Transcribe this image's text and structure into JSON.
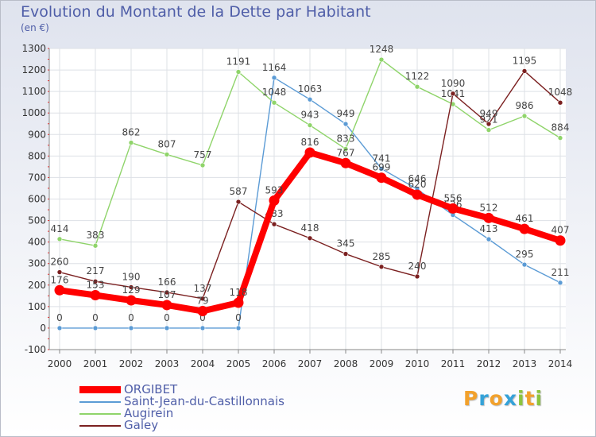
{
  "header": {
    "title": "Evolution du Montant de la Dette par Habitant",
    "unit": "(en €)"
  },
  "brand": {
    "letters": [
      {
        "char": "P",
        "color": "#f2a12c"
      },
      {
        "char": "r",
        "color": "#35a2d8"
      },
      {
        "char": "o",
        "color": "#f2a12c"
      },
      {
        "char": "x",
        "color": "#35a2d8"
      },
      {
        "char": "i",
        "color": "#8cc43f"
      },
      {
        "char": "t",
        "color": "#f2a12c"
      },
      {
        "char": "i",
        "color": "#8cc43f"
      }
    ]
  },
  "chart_data": {
    "type": "line",
    "title": "Evolution du Montant de la Dette par Habitant",
    "unit": "(en €)",
    "x": [
      "2000",
      "2001",
      "2002",
      "2003",
      "2004",
      "2005",
      "2006",
      "2007",
      "2008",
      "2009",
      "2010",
      "2011",
      "2012",
      "2013",
      "2014"
    ],
    "ylim": [
      -100,
      1300
    ],
    "yticks": [
      -100,
      0,
      100,
      200,
      300,
      400,
      500,
      600,
      700,
      800,
      900,
      1000,
      1100,
      1200,
      1300
    ],
    "grid": true,
    "legend_position": "bottom-left",
    "series": [
      {
        "name": "Saint-Jean-du-Castillonnais",
        "color": "#5b9bd5",
        "values": [
          0,
          0,
          0,
          0,
          0,
          0,
          1164,
          1063,
          949,
          741,
          646,
          526,
          413,
          295,
          211
        ],
        "labels": [
          "0",
          "0",
          "0",
          "0",
          "0",
          "0",
          "1164",
          "1063",
          "949",
          "741",
          "646",
          "526",
          "413",
          "295",
          "211"
        ]
      },
      {
        "name": "Augirein",
        "color": "#8fd46a",
        "values": [
          414,
          383,
          862,
          807,
          757,
          1191,
          1048,
          943,
          833,
          1248,
          1122,
          1041,
          921,
          986,
          884
        ],
        "labels": [
          "414",
          "383",
          "862",
          "807",
          "757",
          "1191",
          "1048",
          "943",
          "833",
          "1248",
          "1122",
          "1041",
          "921",
          "986",
          "884"
        ]
      },
      {
        "name": "Galey",
        "color": "#7b2020",
        "values": [
          260,
          217,
          190,
          166,
          137,
          587,
          483,
          418,
          345,
          285,
          240,
          1090,
          949,
          1195,
          1048
        ],
        "labels": [
          "260",
          "217",
          "190",
          "166",
          "137",
          "587",
          "483",
          "418",
          "345",
          "285",
          "240",
          "1090",
          "949",
          "1195",
          "1048"
        ]
      },
      {
        "name": "ORGIBET",
        "color": "#ff0000",
        "values": [
          176,
          153,
          129,
          107,
          79,
          118,
          593,
          816,
          767,
          699,
          620,
          556,
          512,
          461,
          407
        ],
        "labels": [
          "176",
          "153",
          "129",
          "107",
          "79",
          "118",
          "593",
          "816",
          "767",
          "699",
          "620",
          "556",
          "512",
          "461",
          "407"
        ]
      }
    ],
    "legend_order": [
      "ORGIBET",
      "Saint-Jean-du-Castillonnais",
      "Augirein",
      "Galey"
    ]
  }
}
